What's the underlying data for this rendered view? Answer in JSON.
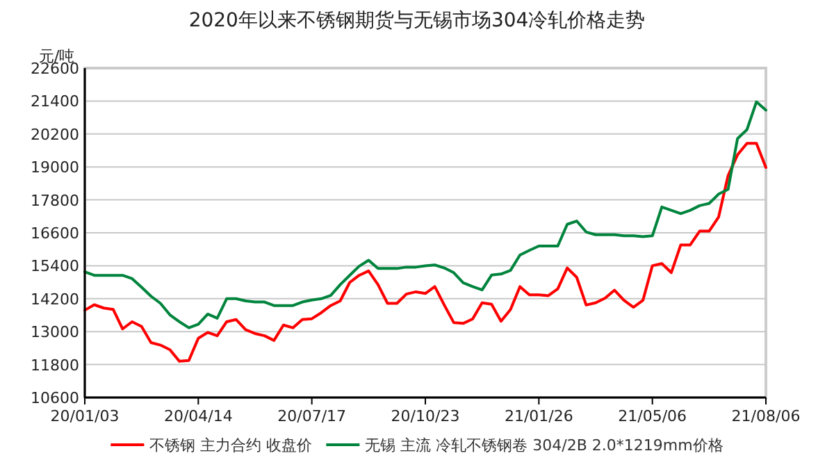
{
  "chart_data": {
    "type": "line",
    "title": "2020年以来不锈钢期货与无锡市场304冷轧价格走势",
    "ylabel": "元/吨",
    "categories": [
      "20/01/03",
      null,
      null,
      null,
      null,
      null,
      null,
      null,
      null,
      null,
      null,
      null,
      "20/04/14",
      null,
      null,
      null,
      null,
      null,
      null,
      null,
      null,
      null,
      null,
      null,
      "20/07/17",
      null,
      null,
      null,
      null,
      null,
      null,
      null,
      null,
      null,
      null,
      null,
      "20/10/23",
      null,
      null,
      null,
      null,
      null,
      null,
      null,
      null,
      null,
      null,
      null,
      "21/01/26",
      null,
      null,
      null,
      null,
      null,
      null,
      null,
      null,
      null,
      null,
      null,
      "21/05/06",
      null,
      null,
      null,
      null,
      null,
      null,
      null,
      null,
      null,
      null,
      null,
      "21/08/06"
    ],
    "series": [
      {
        "name": "不锈钢 主力合约 收盘价",
        "color": "#ff0000",
        "values": [
          13780,
          13980,
          13860,
          13810,
          13100,
          13360,
          13190,
          12600,
          12510,
          12340,
          11920,
          11950,
          12760,
          12970,
          12850,
          13360,
          13440,
          13070,
          12930,
          12850,
          12680,
          13240,
          13140,
          13440,
          13470,
          13690,
          13950,
          14120,
          14790,
          15050,
          15210,
          14710,
          14030,
          14030,
          14370,
          14450,
          14390,
          14640,
          13970,
          13330,
          13300,
          13460,
          14050,
          14000,
          13380,
          13800,
          14640,
          14340,
          14340,
          14310,
          14560,
          15320,
          14980,
          13970,
          14050,
          14220,
          14510,
          14140,
          13890,
          14140,
          15400,
          15480,
          15150,
          16160,
          16160,
          16660,
          16660,
          17170,
          18680,
          19440,
          19860,
          19860,
          18980
        ]
      },
      {
        "name": "无锡 主流 冷轧不锈钢卷 304/2B 2.0*1219mm价格",
        "color": "#00843d",
        "values": [
          15180,
          15050,
          15050,
          15050,
          15050,
          14930,
          14620,
          14290,
          14030,
          13610,
          13360,
          13140,
          13270,
          13640,
          13490,
          14200,
          14200,
          14120,
          14080,
          14080,
          13950,
          13950,
          13950,
          14080,
          14150,
          14200,
          14320,
          14710,
          15050,
          15380,
          15600,
          15300,
          15300,
          15300,
          15350,
          15350,
          15400,
          15430,
          15320,
          15150,
          14780,
          14640,
          14520,
          15060,
          15100,
          15230,
          15790,
          15960,
          16120,
          16120,
          16120,
          16910,
          17030,
          16630,
          16530,
          16530,
          16530,
          16490,
          16490,
          16460,
          16490,
          17540,
          17420,
          17300,
          17420,
          17590,
          17670,
          18010,
          18180,
          20030,
          20360,
          21370,
          21070
        ]
      }
    ],
    "ylim": [
      10600,
      22600
    ],
    "yticks": [
      10600,
      11800,
      13000,
      14200,
      15400,
      16600,
      17800,
      19000,
      20200,
      21400,
      22600
    ],
    "grid": "y",
    "legend": "bottom"
  }
}
